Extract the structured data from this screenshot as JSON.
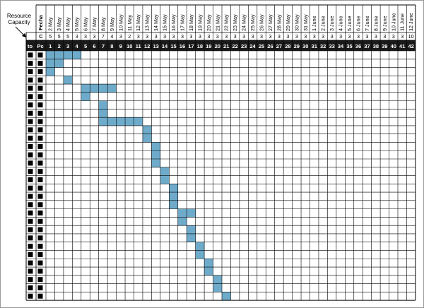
{
  "resource_capacity_label": [
    "Resource",
    "Capacity"
  ],
  "header": {
    "fecha_label": "Fecha",
    "c_label": "C",
    "to_label": "to",
    "pc_label": "Pc"
  },
  "dates": [
    "2 May",
    "3 May",
    "4 May",
    "5 May",
    "6 May",
    "7 May",
    "8 May",
    "9 May",
    "10 May",
    "11 May",
    "12 May",
    "13 May",
    "14 May",
    "15 May",
    "16 May",
    "17 May",
    "18 May",
    "19 May",
    "20 May",
    "21 May",
    "22 May",
    "23 May",
    "24 May",
    "25 May",
    "26 May",
    "27 May",
    "28 May",
    "29 May",
    "30 May",
    "31 May",
    "1 June",
    "2 June",
    "3 June",
    "4 June",
    "5 June",
    "6 June",
    "7 June",
    "8 June",
    "9 June",
    "10 June",
    "11 June",
    "12 June"
  ],
  "capacities": [
    "5",
    "5",
    "5",
    "3",
    "3",
    "3",
    "7",
    "4",
    "3",
    "2",
    "3",
    "3",
    "3",
    "3",
    "3",
    "3",
    "3",
    "3",
    "3",
    "3",
    "3",
    "3",
    "3",
    "3",
    "3",
    "3",
    "3",
    "3",
    "3",
    "3",
    "3",
    "3",
    "3",
    "3",
    "3",
    "3",
    "3",
    "3",
    "3",
    "3",
    "3",
    "10"
  ],
  "day_numbers": [
    "1",
    "2",
    "3",
    "4",
    "5",
    "6",
    "7",
    "8",
    "9",
    "10",
    "11",
    "12",
    "13",
    "14",
    "15",
    "16",
    "17",
    "18",
    "19",
    "20",
    "21",
    "22",
    "23",
    "24",
    "25",
    "26",
    "27",
    "28",
    "29",
    "30",
    "31",
    "32",
    "33",
    "34",
    "35",
    "36",
    "37",
    "38",
    "39",
    "40",
    "41",
    "42"
  ],
  "row_count": 30,
  "colors": {
    "task": "#6eabcb",
    "header_bar": "#1a1a1a",
    "grid_line": "#000000"
  },
  "task_rows": [
    {
      "start": 1,
      "length": 4
    },
    {
      "start": 1,
      "length": 2
    },
    {
      "start": 1,
      "length": 1
    },
    {
      "start": 3,
      "length": 1
    },
    {
      "start": 5,
      "length": 4
    },
    {
      "start": 5,
      "length": 1
    },
    {
      "start": 7,
      "length": 1
    },
    {
      "start": 7,
      "length": 1
    },
    {
      "start": 7,
      "length": 5
    },
    {
      "start": 12,
      "length": 1
    },
    {
      "start": 12,
      "length": 1
    },
    {
      "start": 13,
      "length": 1
    },
    {
      "start": 13,
      "length": 1
    },
    {
      "start": 13,
      "length": 1
    },
    {
      "start": 14,
      "length": 1
    },
    {
      "start": 14,
      "length": 1
    },
    {
      "start": 15,
      "length": 1
    },
    {
      "start": 15,
      "length": 1
    },
    {
      "start": 15,
      "length": 1
    },
    {
      "start": 16,
      "length": 2
    },
    {
      "start": 16,
      "length": 1
    },
    {
      "start": 17,
      "length": 1
    },
    {
      "start": 17,
      "length": 1
    },
    {
      "start": 18,
      "length": 1
    },
    {
      "start": 18,
      "length": 1
    },
    {
      "start": 19,
      "length": 1
    },
    {
      "start": 19,
      "length": 1
    },
    {
      "start": 20,
      "length": 1
    },
    {
      "start": 20,
      "length": 1
    },
    {
      "start": 21,
      "length": 1
    }
  ]
}
